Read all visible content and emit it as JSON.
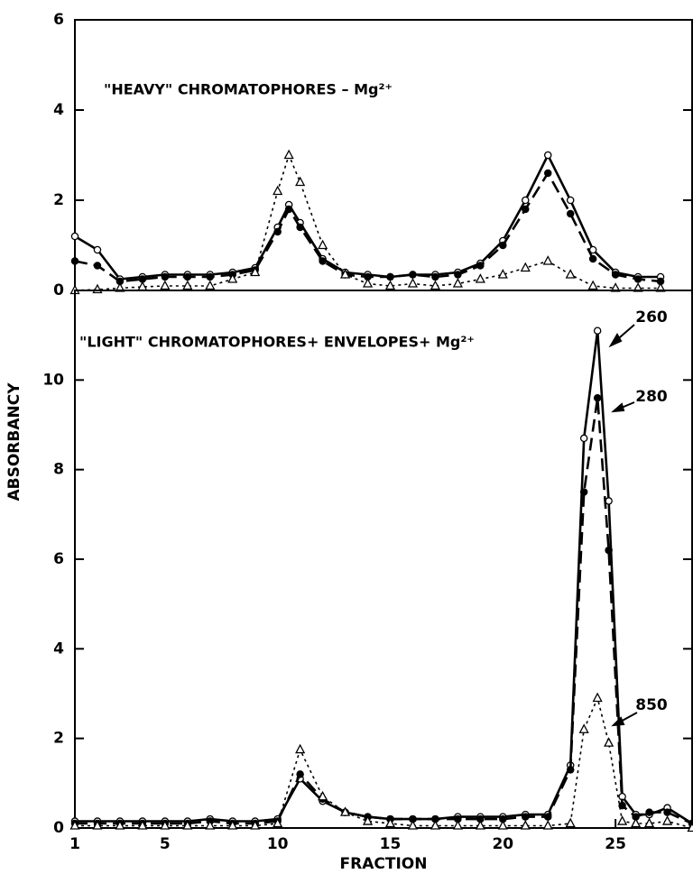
{
  "chart_data": [
    {
      "type": "line",
      "title": "\"HEAVY\" CHROMATOPHORES – Mg²⁺",
      "x": [
        1,
        2,
        3,
        4,
        5,
        6,
        7,
        8,
        9,
        10,
        10.5,
        11,
        12,
        13,
        14,
        15,
        16,
        17,
        18,
        19,
        20,
        21,
        22,
        23,
        24,
        25,
        26,
        27
      ],
      "series": [
        {
          "color": "#000000",
          "line": "solid",
          "marker": "open-circle",
          "values": [
            1.2,
            0.9,
            0.25,
            0.3,
            0.35,
            0.35,
            0.35,
            0.4,
            0.5,
            1.4,
            1.9,
            1.5,
            0.7,
            0.4,
            0.35,
            0.3,
            0.35,
            0.35,
            0.4,
            0.6,
            1.1,
            2.0,
            3.0,
            2.0,
            0.9,
            0.4,
            0.3,
            0.3
          ]
        },
        {
          "color": "#000000",
          "line": "dashed",
          "marker": "filled-circle",
          "values": [
            0.65,
            0.55,
            0.2,
            0.25,
            0.3,
            0.3,
            0.3,
            0.35,
            0.45,
            1.3,
            1.8,
            1.4,
            0.65,
            0.35,
            0.3,
            0.3,
            0.35,
            0.3,
            0.35,
            0.55,
            1.0,
            1.8,
            2.6,
            1.7,
            0.7,
            0.35,
            0.25,
            0.2
          ]
        },
        {
          "color": "#000000",
          "line": "dotted",
          "marker": "open-triangle",
          "values": [
            0,
            0.02,
            0.05,
            0.08,
            0.1,
            0.1,
            0.1,
            0.25,
            0.4,
            2.2,
            3.0,
            2.4,
            1.0,
            0.35,
            0.15,
            0.1,
            0.15,
            0.1,
            0.15,
            0.25,
            0.35,
            0.5,
            0.65,
            0.35,
            0.1,
            0.05,
            0.05,
            0.05
          ]
        }
      ],
      "xlim": [
        1,
        28.4
      ],
      "ylim": [
        0,
        6
      ],
      "yticks": [
        0,
        2,
        4,
        6
      ]
    },
    {
      "type": "line",
      "title": "\"LIGHT\" CHROMATOPHORES+ ENVELOPES+ Mg²⁺",
      "xlabel": "FRACTION",
      "ylabel": "ABSORBANCY",
      "x": [
        1,
        2,
        3,
        4,
        5,
        6,
        7,
        8,
        9,
        10,
        11,
        12,
        13,
        14,
        15,
        16,
        17,
        18,
        19,
        20,
        21,
        22,
        23,
        23.6,
        24.2,
        24.7,
        25.3,
        25.9,
        26.5,
        27.3,
        28.4
      ],
      "series": [
        {
          "name": "260",
          "color": "#000000",
          "line": "solid",
          "marker": "open-circle",
          "values": [
            0.15,
            0.15,
            0.15,
            0.15,
            0.15,
            0.15,
            0.2,
            0.15,
            0.15,
            0.2,
            1.1,
            0.6,
            0.35,
            0.25,
            0.2,
            0.2,
            0.2,
            0.25,
            0.25,
            0.25,
            0.3,
            0.3,
            1.4,
            8.7,
            11.1,
            7.3,
            0.7,
            0.3,
            0.3,
            0.45,
            0.1
          ]
        },
        {
          "name": "280",
          "color": "#000000",
          "line": "dashed",
          "marker": "filled-circle",
          "values": [
            0.1,
            0.1,
            0.1,
            0.1,
            0.1,
            0.1,
            0.15,
            0.1,
            0.1,
            0.15,
            1.2,
            0.65,
            0.35,
            0.25,
            0.2,
            0.2,
            0.2,
            0.2,
            0.2,
            0.2,
            0.25,
            0.25,
            1.3,
            7.5,
            9.6,
            6.2,
            0.5,
            0.25,
            0.35,
            0.35,
            0.1
          ]
        },
        {
          "name": "850",
          "color": "#000000",
          "line": "dotted",
          "marker": "open-triangle",
          "values": [
            0.05,
            0.05,
            0.05,
            0.05,
            0.05,
            0.05,
            0.05,
            0.05,
            0.05,
            0.1,
            1.75,
            0.7,
            0.35,
            0.15,
            0.1,
            0.05,
            0.05,
            0.05,
            0.05,
            0.05,
            0.05,
            0.05,
            0.1,
            2.2,
            2.9,
            1.9,
            0.15,
            0.1,
            0.1,
            0.15,
            0
          ]
        }
      ],
      "xlim": [
        1,
        28.4
      ],
      "ylim": [
        0,
        12
      ],
      "xticks": [
        1,
        5,
        10,
        15,
        20,
        25
      ],
      "yticks": [
        0,
        2,
        4,
        6,
        8,
        10
      ]
    }
  ]
}
